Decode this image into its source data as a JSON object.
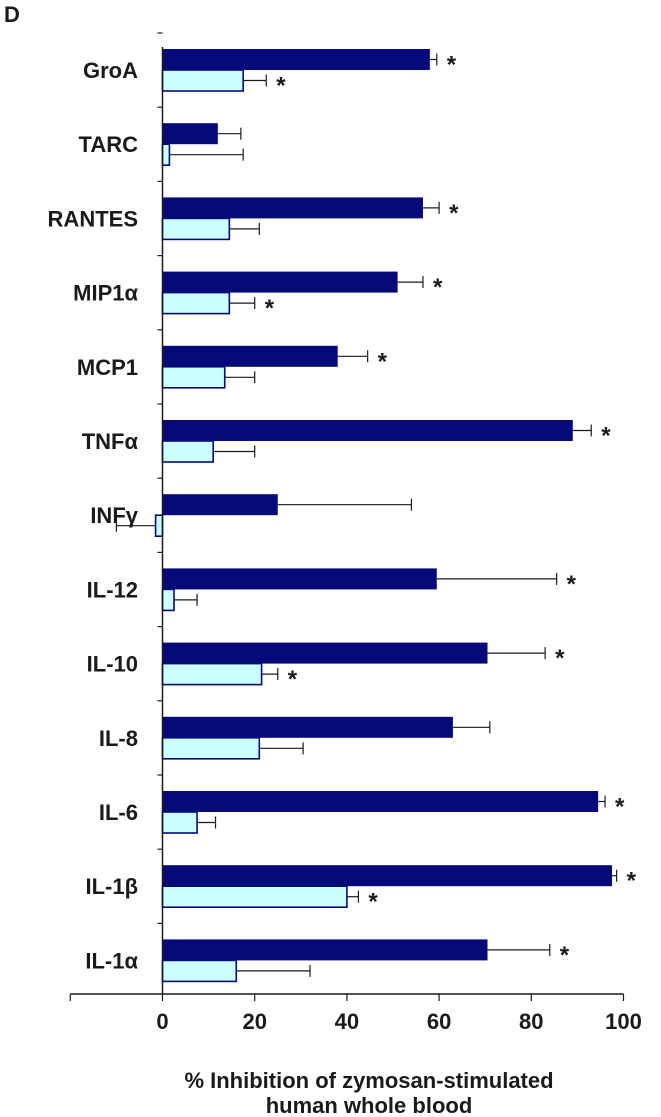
{
  "panel_label": "D",
  "colors": {
    "dark_series": "#050a78",
    "light_series": "#ccffff",
    "light_edge": "#050a78",
    "axis": "#1a1a1a",
    "errorbar": "#1a1a1a"
  },
  "chart_data": {
    "type": "bar",
    "orientation": "horizontal",
    "categories": [
      "GroA",
      "TARC",
      "RANTES",
      "MIP1α",
      "MCP1",
      "TNFα",
      "INFγ",
      "IL-12",
      "IL-10",
      "IL-8",
      "IL-6",
      "IL-1β",
      "IL-1α"
    ],
    "series": [
      {
        "values": [
          58,
          12,
          56.5,
          51,
          38,
          89,
          25,
          59.5,
          70.5,
          63,
          94.5,
          97.5,
          70.5
        ],
        "errors": [
          1.5,
          5,
          3.5,
          5.5,
          6.5,
          4,
          29,
          26,
          12.5,
          8,
          1.5,
          1,
          13.5
        ],
        "significant": [
          true,
          false,
          true,
          true,
          true,
          true,
          false,
          true,
          true,
          false,
          true,
          true,
          true
        ]
      },
      {
        "values": [
          17.5,
          1.5,
          14.5,
          14.5,
          13.5,
          11,
          -1.5,
          2.5,
          21.5,
          21,
          7.5,
          40,
          16
        ],
        "errors": [
          5,
          16,
          6.5,
          5.5,
          6.5,
          9,
          8.5,
          5,
          3.5,
          9.5,
          4,
          2.5,
          16
        ],
        "significant": [
          true,
          false,
          false,
          true,
          false,
          false,
          false,
          false,
          true,
          false,
          false,
          true,
          false
        ]
      }
    ],
    "significance_marker": "*",
    "xlim": [
      -20,
      100
    ],
    "xticks": [
      0,
      20,
      40,
      60,
      80,
      100
    ],
    "xlabel_lines": [
      "% Inhibition of zymosan-stimulated",
      "human whole blood"
    ],
    "ylabel": "",
    "title": "",
    "legend": "none",
    "grid": false
  }
}
